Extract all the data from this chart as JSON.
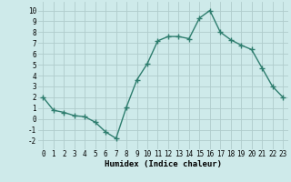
{
  "x": [
    0,
    1,
    2,
    3,
    4,
    5,
    6,
    7,
    8,
    9,
    10,
    11,
    12,
    13,
    14,
    15,
    16,
    17,
    18,
    19,
    20,
    21,
    22,
    23
  ],
  "y": [
    2,
    0.8,
    0.6,
    0.3,
    0.2,
    -0.3,
    -1.2,
    -1.8,
    1.1,
    3.6,
    5.1,
    7.2,
    7.6,
    7.6,
    7.4,
    9.3,
    10.0,
    8.0,
    7.3,
    6.8,
    6.4,
    4.7,
    3.0,
    2.0
  ],
  "line_color": "#2e7d6e",
  "marker": "+",
  "markersize": 4,
  "markeredgewidth": 1.0,
  "linewidth": 1.0,
  "background_color": "#ceeaea",
  "grid_color": "#b0cccc",
  "xlabel": "Humidex (Indice chaleur)",
  "xlabel_fontsize": 6.5,
  "tick_fontsize": 5.5,
  "xlim": [
    -0.5,
    23.5
  ],
  "ylim": [
    -2.8,
    10.8
  ],
  "yticks": [
    -2,
    -1,
    0,
    1,
    2,
    3,
    4,
    5,
    6,
    7,
    8,
    9,
    10
  ],
  "xticks": [
    0,
    1,
    2,
    3,
    4,
    5,
    6,
    7,
    8,
    9,
    10,
    11,
    12,
    13,
    14,
    15,
    16,
    17,
    18,
    19,
    20,
    21,
    22,
    23
  ]
}
